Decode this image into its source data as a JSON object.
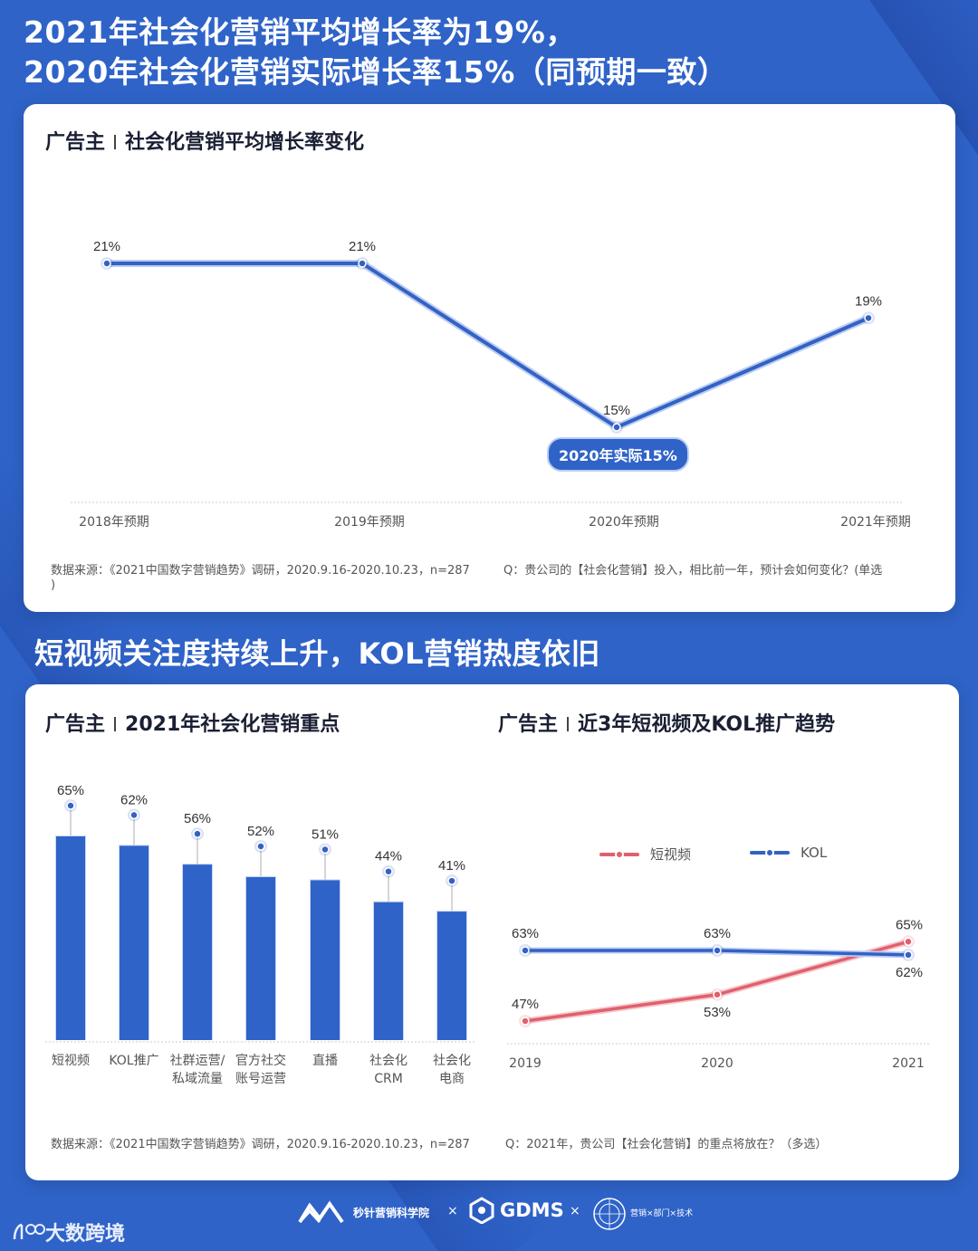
{
  "headline1": {
    "line1": "2021年社会化营销平均增长率为19%，",
    "line2": "2020年社会化营销实际增长率15%（同预期一致）"
  },
  "card1": {
    "title_prefix": "广告主",
    "title": "社会化营销平均增长率变化",
    "annotation_pill": "2020年实际15%",
    "source": "数据来源：《2021中国数字营销趋势》调研，2020.9.16-2020.10.23，n=287",
    "question": "Q：贵公司的【社会化营销】投入，相比前一年，预计会如何变化？(单选",
    "question_tail": ")"
  },
  "headline2": "短视频关注度持续上升，KOL营销热度依旧",
  "card2": {
    "left_title_prefix": "广告主",
    "left_title": "2021年社会化营销重点",
    "right_title_prefix": "广告主",
    "right_title": "近3年短视频及KOL推广趋势",
    "source": "数据来源：《2021中国数字营销趋势》调研，2020.9.16-2020.10.23，n=287",
    "question": "Q：2021年，贵公司【社会化营销】的重点将放在？（多选）"
  },
  "footer": {
    "brand1": "秒针营销科学院",
    "times1": "×",
    "brand2": "GDMS",
    "times2": "×",
    "brand3_line1": "营销×部门×技术",
    "watermark": "大数跨境"
  },
  "colors": {
    "background": "#2f63c8",
    "primary_line": "#3461c3",
    "short_video": "#e0606e",
    "kol": "#3461c3"
  },
  "chart_data": [
    {
      "type": "line",
      "title": "广告主 | 社会化营销平均增长率变化",
      "categories": [
        "2018年预期",
        "2019年预期",
        "2020年预期",
        "2021年预期"
      ],
      "values": [
        21,
        21,
        15,
        19
      ],
      "labels": [
        "21%",
        "21%",
        "15%",
        "19%"
      ],
      "annotations": [
        "2020年实际15%"
      ],
      "xlabel": "",
      "ylabel": "",
      "grid": false
    },
    {
      "type": "bar",
      "title": "广告主 | 2021年社会化营销重点",
      "categories": [
        "短视频",
        "KOL推广",
        "社群运营/私域流量",
        "官方社交账号运营",
        "直播",
        "社会化CRM",
        "社会化电商"
      ],
      "category_lines": [
        [
          "短视频"
        ],
        [
          "KOL推广"
        ],
        [
          "社群运营/",
          "私域流量"
        ],
        [
          "官方社交",
          "账号运营"
        ],
        [
          "直播"
        ],
        [
          "社会化",
          "CRM"
        ],
        [
          "社会化",
          "电商"
        ]
      ],
      "values": [
        65,
        62,
        56,
        52,
        51,
        44,
        41
      ],
      "labels": [
        "65%",
        "62%",
        "56%",
        "52%",
        "51%",
        "44%",
        "41%"
      ],
      "grid": false
    },
    {
      "type": "line",
      "title": "广告主 | 近3年短视频及KOL推广趋势",
      "categories": [
        "2019",
        "2020",
        "2021"
      ],
      "series": [
        {
          "name": "短视频",
          "values": [
            47,
            53,
            65
          ],
          "labels": [
            "47%",
            "53%",
            "65%"
          ]
        },
        {
          "name": "KOL",
          "values": [
            63,
            63,
            62
          ],
          "labels": [
            "63%",
            "63%",
            "62%"
          ]
        }
      ],
      "legend_position": "top",
      "grid": false
    }
  ]
}
